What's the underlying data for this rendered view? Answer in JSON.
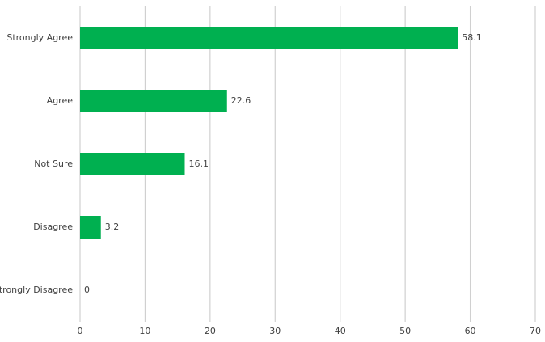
{
  "chart_data": {
    "type": "barh",
    "categories": [
      "Strongly Agree",
      "Agree",
      "Not Sure",
      "Disagree",
      "Strongly Disagree"
    ],
    "values": [
      58.1,
      22.6,
      16.1,
      3.2,
      0
    ],
    "color": "#00b050",
    "xlim": [
      0,
      70
    ],
    "xticks": [
      0,
      10,
      20,
      30,
      40,
      50,
      60,
      70
    ],
    "grid": true
  }
}
